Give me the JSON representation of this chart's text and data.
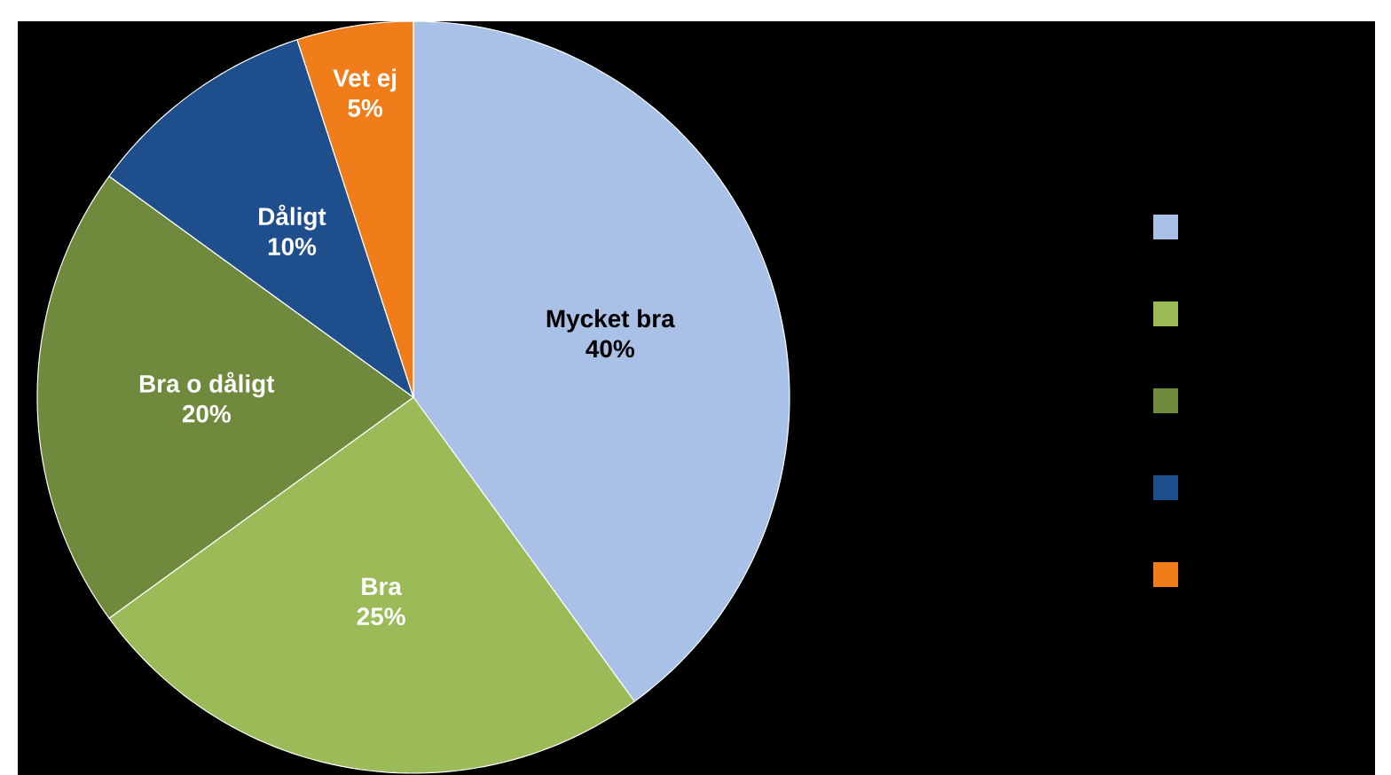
{
  "chart_data": {
    "type": "pie",
    "categories": [
      "Mycket bra",
      "Bra",
      "Bra o dåligt",
      "Dåligt",
      "Vet ej"
    ],
    "values": [
      40,
      25,
      20,
      10,
      5
    ],
    "value_labels": [
      "40%",
      "25%",
      "20%",
      "10%",
      "5%"
    ],
    "colors": [
      "#a9c1e6",
      "#9bbb59",
      "#6f8a3c",
      "#1f4e8c",
      "#f07d1a"
    ]
  }
}
